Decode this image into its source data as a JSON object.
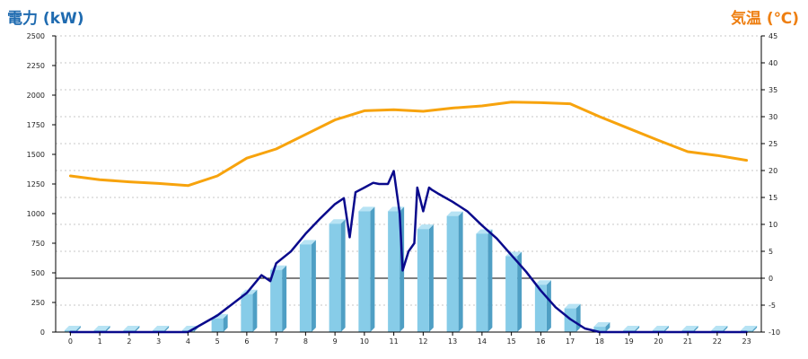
{
  "colors": {
    "power_title": "#1f6bb0",
    "temp_title": "#ee7f12",
    "bar_front": "#87cce8",
    "bar_side": "#4f9fc4",
    "bar_top": "#b7e3f4",
    "power_line": "#0a0a8c",
    "temp_line": "#f7a30d",
    "grid": "#b5b5b5",
    "axis": "#000000"
  },
  "chart_data": {
    "type": "bar",
    "title_left": "電力 (kW)",
    "title_right": "気温 (℃)",
    "categories": [
      "0",
      "1",
      "2",
      "3",
      "4",
      "5",
      "6",
      "7",
      "8",
      "9",
      "10",
      "11",
      "12",
      "13",
      "14",
      "15",
      "16",
      "17",
      "18",
      "19",
      "20",
      "21",
      "22",
      "23"
    ],
    "ylim_left": [
      0,
      2500
    ],
    "yticks_left": [
      "0",
      "250",
      "500",
      "750",
      "1000",
      "1250",
      "1500",
      "1750",
      "2000",
      "2250",
      "2500"
    ],
    "ylim_right": [
      -10,
      45
    ],
    "yticks_right": [
      "-10",
      "-5",
      "0",
      "5",
      "10",
      "15",
      "20",
      "25",
      "30",
      "35",
      "40",
      "45"
    ],
    "grid": true,
    "series": [
      {
        "kind": "bar",
        "axis": "left",
        "values": [
          15,
          15,
          15,
          15,
          15,
          115,
          320,
          525,
          740,
          915,
          1020,
          1020,
          870,
          980,
          830,
          640,
          400,
          200,
          45,
          15,
          15,
          15,
          15,
          15
        ]
      },
      {
        "kind": "line",
        "axis": "left",
        "x": [
          0,
          1,
          2,
          3,
          4,
          5,
          6,
          6.5,
          6.8,
          7,
          7.5,
          8,
          8.5,
          9,
          9.3,
          9.5,
          9.7,
          10,
          10.3,
          10.5,
          10.8,
          11,
          11.2,
          11.3,
          11.5,
          11.7,
          11.8,
          12,
          12.2,
          12.3,
          12.5,
          13,
          13.5,
          14,
          14.5,
          15,
          15.5,
          16,
          16.5,
          17,
          17.5,
          18,
          19,
          20,
          21,
          22,
          23
        ],
        "y": [
          0,
          0,
          0,
          0,
          0,
          140,
          330,
          480,
          430,
          580,
          680,
          830,
          960,
          1080,
          1130,
          800,
          1180,
          1220,
          1260,
          1250,
          1250,
          1360,
          1000,
          520,
          680,
          750,
          1220,
          1020,
          1220,
          1200,
          1170,
          1100,
          1020,
          900,
          790,
          650,
          510,
          350,
          210,
          110,
          30,
          0,
          0,
          0,
          0,
          0,
          0
        ]
      },
      {
        "kind": "line",
        "axis": "right",
        "x": [
          0,
          1,
          2,
          3,
          4,
          5,
          6,
          7,
          8,
          9,
          10,
          11,
          12,
          13,
          14,
          15,
          16,
          17,
          18,
          19,
          20,
          21,
          22,
          23
        ],
        "values": [
          19,
          18.3,
          17.9,
          17.6,
          17.2,
          19,
          22.3,
          24,
          26.7,
          29.4,
          31.1,
          31.3,
          31,
          31.6,
          32,
          32.7,
          32.6,
          32.4,
          30,
          27.8,
          25.6,
          23.5,
          22.8,
          21.9
        ]
      }
    ]
  }
}
